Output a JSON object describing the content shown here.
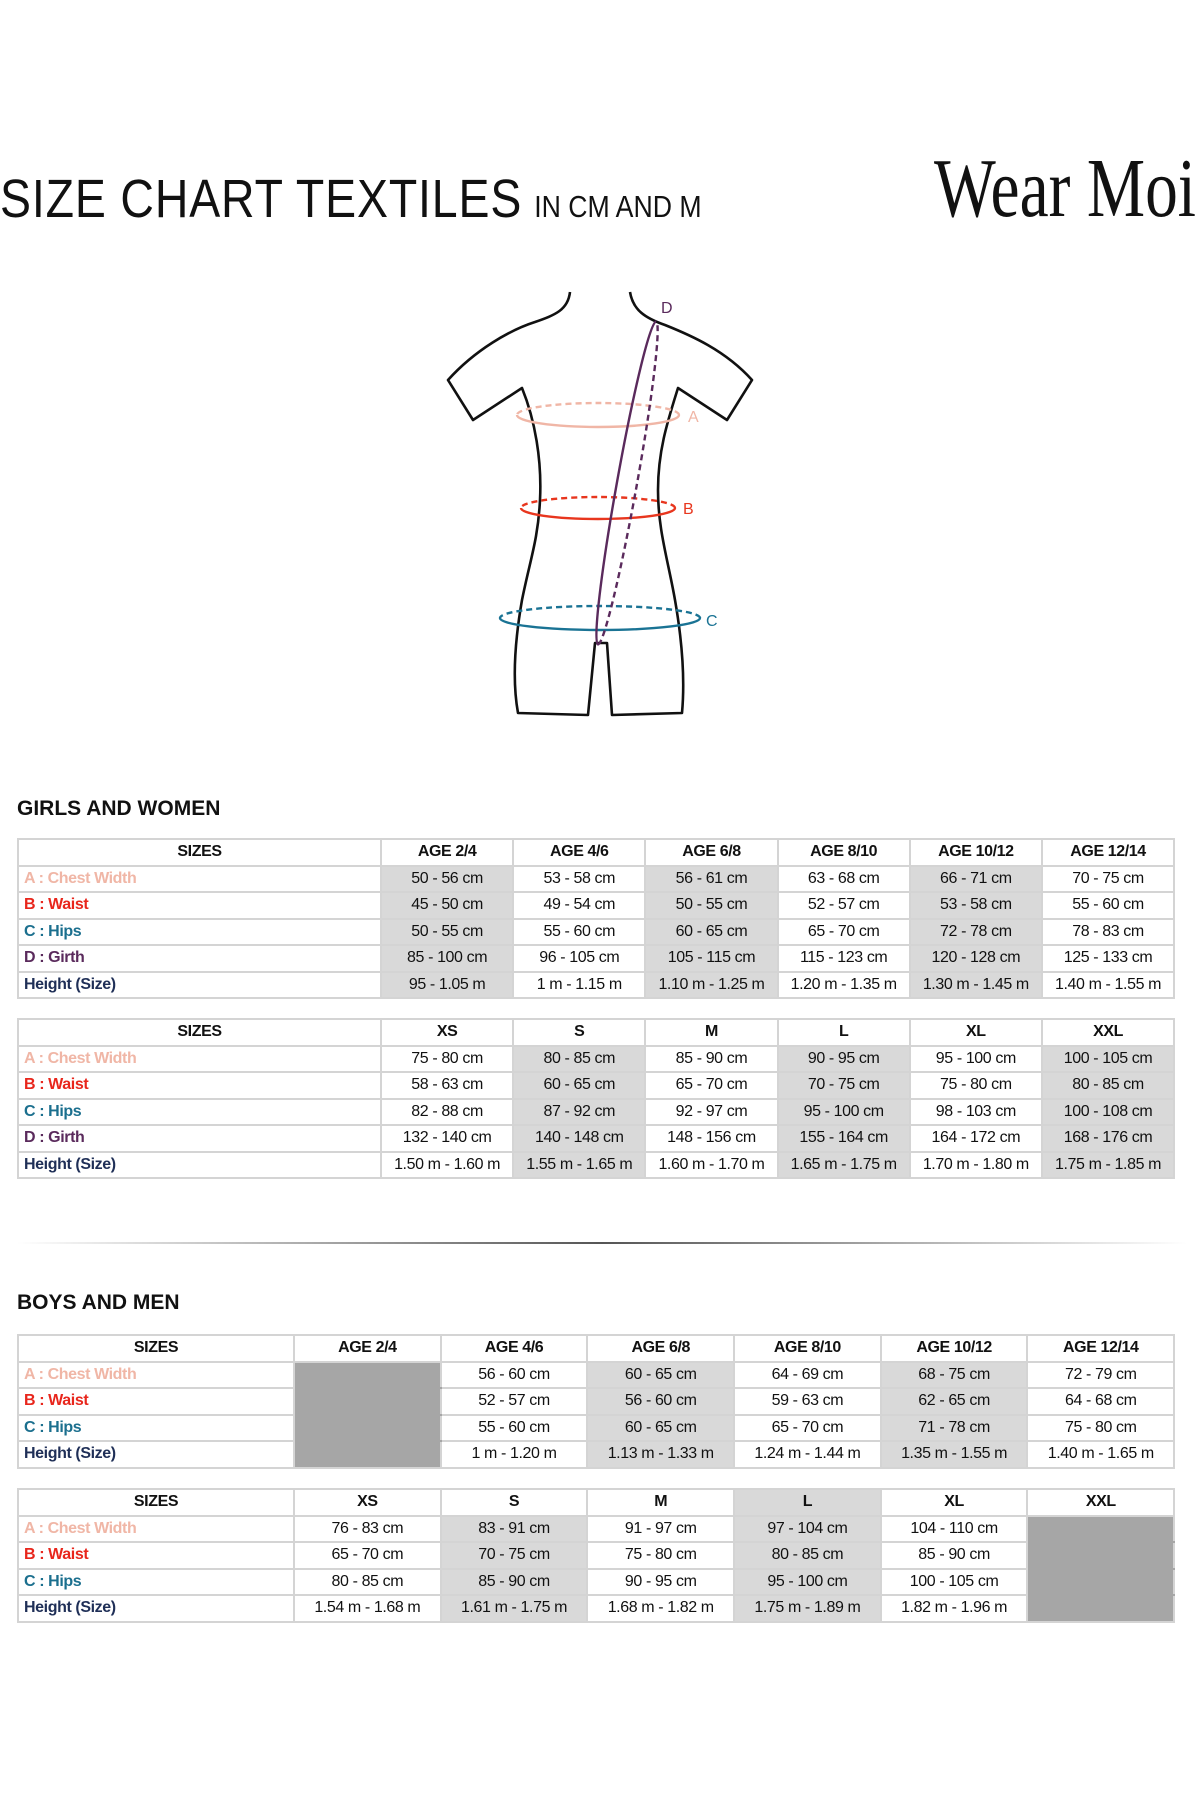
{
  "header": {
    "title": "SIZE CHART TEXTILES",
    "subtitle": "IN CM AND M",
    "logo_text": "Wear Moi"
  },
  "figure": {
    "labels": {
      "a": "A",
      "b": "B",
      "c": "C",
      "d": "D"
    }
  },
  "colors": {
    "chest": "#f0b6a6",
    "waist": "#e8261c",
    "hips": "#1b6f8e",
    "girth": "#5a2a5c",
    "height": "#1f2f57",
    "shade_light": "#d9d9d9",
    "shade_dark": "#a6a6a6"
  },
  "sections": [
    {
      "heading": "GIRLS AND WOMEN",
      "tables": [
        {
          "headers": [
            "SIZES",
            "AGE 2/4",
            "AGE 4/6",
            "AGE 6/8",
            "AGE 8/10",
            "AGE 10/12",
            "AGE 12/14"
          ],
          "header_shade": [
            "",
            "",
            "",
            "",
            "",
            "",
            ""
          ],
          "shade": [
            "",
            "light",
            "",
            "light",
            "",
            "light",
            ""
          ],
          "rows": [
            {
              "label": "A : Chest Width",
              "key": "chest",
              "cells": [
                "50 - 56 cm",
                "53 - 58 cm",
                "56 - 61 cm",
                "63 - 68 cm",
                "66 - 71 cm",
                "70 - 75 cm"
              ]
            },
            {
              "label": "B : Waist",
              "key": "waist",
              "cells": [
                "45 - 50 cm",
                "49  - 54 cm",
                "50 - 55 cm",
                "52 - 57 cm",
                "53 - 58 cm",
                "55 - 60 cm"
              ]
            },
            {
              "label": "C : Hips",
              "key": "hips",
              "cells": [
                "50 - 55 cm",
                "55 - 60 cm",
                "60 - 65 cm",
                "65 - 70 cm",
                "72 - 78 cm",
                "78 - 83 cm"
              ]
            },
            {
              "label": "D : Girth",
              "key": "girth",
              "cells": [
                "85 - 100 cm",
                "96 - 105 cm",
                "105 - 115  cm",
                "115 - 123 cm",
                "120 - 128 cm",
                "125 - 133 cm"
              ]
            },
            {
              "label": "Height (Size)",
              "key": "height",
              "cells": [
                "95 - 1.05 m",
                "1 m - 1.15 m",
                "1.10 m - 1.25 m",
                "1.20 m - 1.35 m",
                "1.30 m - 1.45 m",
                "1.40 m - 1.55 m"
              ]
            }
          ]
        },
        {
          "headers": [
            "SIZES",
            "XS",
            "S",
            "M",
            "L",
            "XL",
            "XXL"
          ],
          "header_shade": [
            "",
            "",
            "",
            "",
            "",
            "",
            ""
          ],
          "shade": [
            "",
            "",
            "light",
            "",
            "light",
            "",
            "light"
          ],
          "rows": [
            {
              "label": "A : Chest Width",
              "key": "chest",
              "cells": [
                "75 - 80 cm",
                "80 - 85 cm",
                "85 - 90 cm",
                "90 - 95 cm",
                "95 - 100 cm",
                "100 - 105 cm"
              ]
            },
            {
              "label": "B : Waist",
              "key": "waist",
              "cells": [
                "58 - 63 cm",
                "60 - 65 cm",
                "65 - 70 cm",
                "70 - 75 cm",
                "75 - 80 cm",
                "80 - 85 cm"
              ]
            },
            {
              "label": "C : Hips",
              "key": "hips",
              "cells": [
                "82 - 88 cm",
                "87 - 92 cm",
                "92 - 97 cm",
                "95 - 100 cm",
                "98 - 103 cm",
                "100 - 108 cm"
              ]
            },
            {
              "label": "D : Girth",
              "key": "girth",
              "cells": [
                "132 - 140 cm",
                "140 - 148 cm",
                "148 - 156 cm",
                "155 - 164 cm",
                "164 - 172 cm",
                "168 - 176 cm"
              ]
            },
            {
              "label": "Height (Size)",
              "key": "height",
              "cells": [
                "1.50 m - 1.60 m",
                "1.55 m - 1.65 m",
                "1.60 m - 1.70 m",
                "1.65 m - 1.75 m",
                "1.70 m - 1.80 m",
                "1.75 m - 1.85 m"
              ]
            }
          ]
        }
      ]
    },
    {
      "heading": "BOYS AND MEN",
      "tables": [
        {
          "headers": [
            "SIZES",
            "AGE 2/4",
            "AGE 4/6",
            "AGE 6/8",
            "AGE 8/10",
            "AGE 10/12",
            "AGE 12/14"
          ],
          "header_shade": [
            "",
            "",
            "",
            "",
            "",
            "",
            ""
          ],
          "shade": [
            "",
            "dark",
            "",
            "light",
            "",
            "light",
            ""
          ],
          "rows": [
            {
              "label": "A : Chest Width",
              "key": "chest",
              "cells": [
                "",
                "56 - 60 cm",
                "60 - 65 cm",
                "64 - 69 cm",
                "68 - 75 cm",
                "72 - 79 cm"
              ]
            },
            {
              "label": "B : Waist",
              "key": "waist",
              "cells": [
                "",
                "52  - 57 cm",
                "56 - 60 cm",
                "59 - 63 cm",
                "62 - 65 cm",
                "64 - 68 cm"
              ]
            },
            {
              "label": "C : Hips",
              "key": "hips",
              "cells": [
                "",
                "55 - 60 cm",
                "60 - 65 cm",
                "65 - 70 cm",
                "71 - 78 cm",
                "75 - 80 cm"
              ]
            },
            {
              "label": "Height (Size)",
              "key": "height",
              "cells": [
                "",
                "1 m - 1.20 m",
                "1.13 m - 1.33 m",
                "1.24 m - 1.44 m",
                "1.35 m - 1.55 m",
                "1.40 m - 1.65 m"
              ]
            }
          ]
        },
        {
          "headers": [
            "SIZES",
            "XS",
            "S",
            "M",
            "L",
            "XL",
            "XXL"
          ],
          "header_shade": [
            "",
            "",
            "",
            "",
            "light",
            "",
            ""
          ],
          "shade": [
            "",
            "",
            "light",
            "",
            "light",
            "",
            "dark"
          ],
          "rows": [
            {
              "label": "A : Chest Width",
              "key": "chest",
              "cells": [
                "76 - 83 cm",
                "83 - 91 cm",
                "91 - 97 cm",
                "97 - 104 cm",
                "104 - 110 cm",
                ""
              ]
            },
            {
              "label": "B : Waist",
              "key": "waist",
              "cells": [
                "65 - 70 cm",
                "70 - 75 cm",
                "75 - 80 cm",
                "80 - 85 cm",
                "85 - 90 cm",
                ""
              ]
            },
            {
              "label": "C : Hips",
              "key": "hips",
              "cells": [
                "80 - 85 cm",
                "85 - 90 cm",
                "90 - 95 cm",
                "95 - 100 cm",
                "100 - 105 cm",
                ""
              ]
            },
            {
              "label": "Height (Size)",
              "key": "height",
              "cells": [
                "1.54 m - 1.68 m",
                "1.61 m - 1.75 m",
                "1.68 m - 1.82 m",
                "1.75 m - 1.89 m",
                "1.82 m - 1.96 m",
                ""
              ]
            }
          ]
        }
      ]
    }
  ]
}
